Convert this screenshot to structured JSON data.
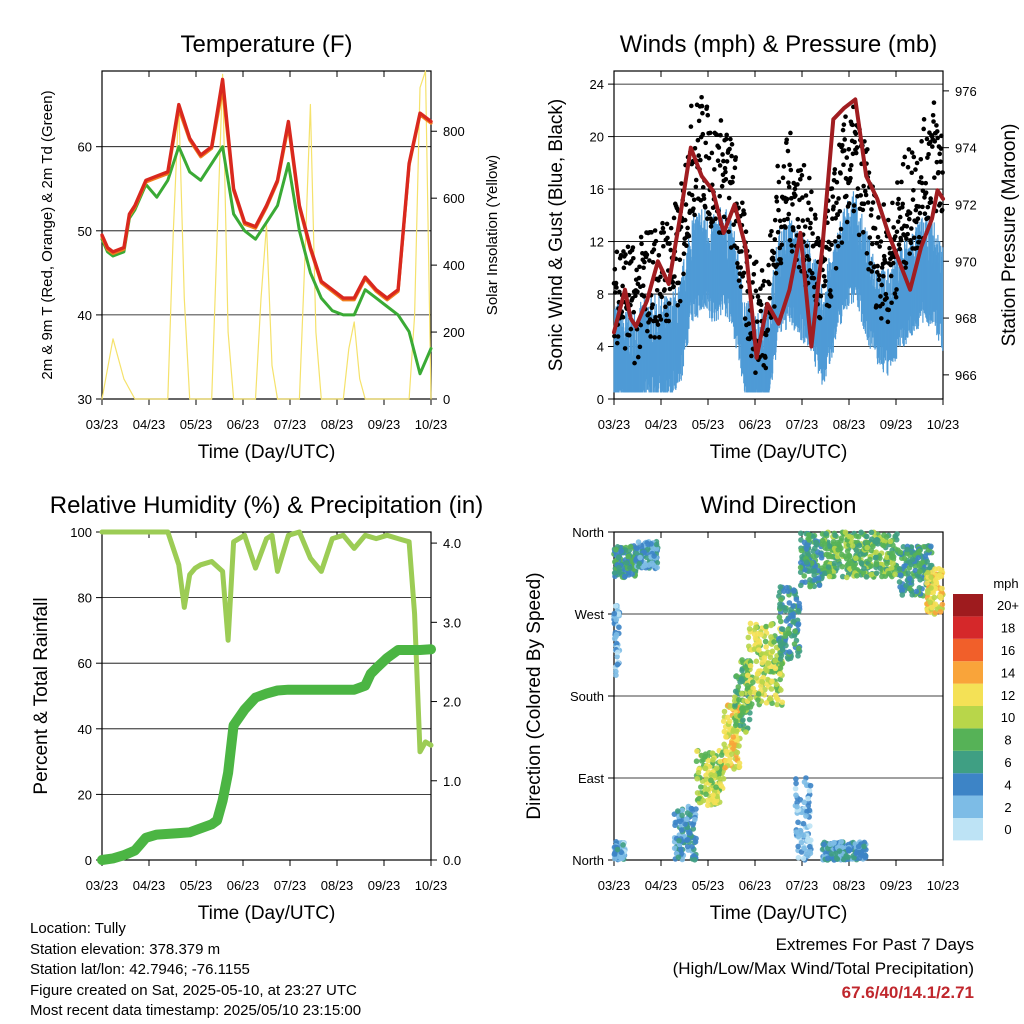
{
  "chart_data": [
    {
      "type": "line",
      "title": "Temperature (F)",
      "xlabel": "Time (Day/UTC)",
      "ylabel": "2m & 9m T (Red, Orange) & 2m Td (Green)",
      "ylabel_right": "Solar Insolation (Yellow)",
      "x_ticks": [
        "03/23",
        "04/23",
        "05/23",
        "06/23",
        "07/23",
        "08/23",
        "09/23",
        "10/23"
      ],
      "ylim": [
        30,
        69
      ],
      "y_ticks": [
        30,
        40,
        50,
        60
      ],
      "ylim_right": [
        0,
        980
      ],
      "y_ticks_right": [
        0,
        200,
        400,
        600,
        800
      ],
      "grid_y": true,
      "series": [
        {
          "name": "2m T",
          "color": "#d9281e",
          "x": [
            0,
            0.5,
            1,
            2,
            2.5,
            3,
            4,
            5,
            6,
            7,
            8,
            9,
            10,
            11,
            12,
            13,
            14,
            15,
            16,
            17,
            18,
            19,
            20,
            21,
            22,
            23,
            24,
            25,
            26,
            27,
            28,
            29,
            30
          ],
          "values": [
            49.5,
            48,
            47.5,
            48,
            52,
            53,
            56,
            56.5,
            57,
            65,
            61,
            59,
            60,
            68,
            55,
            51,
            50.5,
            53,
            56,
            63,
            53,
            48,
            44,
            43,
            42,
            42,
            44.5,
            43,
            42,
            43,
            58,
            64,
            63
          ]
        },
        {
          "name": "9m T",
          "color": "#f07c1d",
          "x": [
            0,
            0.5,
            1,
            2,
            2.5,
            3,
            4,
            5,
            6,
            7,
            8,
            9,
            10,
            11,
            12,
            13,
            14,
            15,
            16,
            17,
            18,
            19,
            20,
            21,
            22,
            23,
            24,
            25,
            26,
            27,
            28,
            29,
            30
          ],
          "values": [
            49.3,
            47.8,
            47.3,
            47.8,
            51.8,
            52.8,
            55.8,
            56.3,
            56.8,
            64.5,
            60.8,
            58.8,
            59.8,
            67,
            54.8,
            50.8,
            50.3,
            52.8,
            55.8,
            62.5,
            52.8,
            47.8,
            43.8,
            42.8,
            41.8,
            41.8,
            44.3,
            42.8,
            41.8,
            42.8,
            57.8,
            63.8,
            62.8
          ]
        },
        {
          "name": "2m Td",
          "color": "#3aaa35",
          "x": [
            0,
            0.5,
            1,
            2,
            2.5,
            3,
            4,
            5,
            6,
            7,
            8,
            9,
            10,
            11,
            12,
            13,
            14,
            15,
            16,
            17,
            18,
            19,
            20,
            21,
            22,
            23,
            24,
            25,
            26,
            27,
            28,
            29,
            30
          ],
          "values": [
            49,
            47.5,
            47,
            47.5,
            51.5,
            52.5,
            55.5,
            54,
            56,
            60,
            57,
            56,
            58,
            60,
            52,
            50,
            49,
            51,
            53,
            58,
            50,
            45,
            42,
            40.5,
            40,
            40,
            43,
            42,
            41,
            40,
            38,
            33,
            36
          ]
        },
        {
          "name": "Solar Insolation",
          "color": "#f5e26b",
          "x": [
            0,
            1,
            2,
            3,
            4,
            5,
            6,
            6.5,
            7,
            7.5,
            8,
            9,
            10,
            10.5,
            11,
            11.5,
            12,
            13,
            14,
            14.5,
            15,
            15.5,
            16,
            17,
            18,
            18.5,
            19,
            19.5,
            20,
            21,
            22,
            22.5,
            23,
            23.5,
            24,
            25,
            26,
            27,
            28,
            28.5,
            29,
            29.5,
            30
          ],
          "values": [
            0,
            180,
            60,
            0,
            0,
            0,
            0,
            500,
            880,
            300,
            0,
            0,
            0,
            480,
            970,
            200,
            0,
            0,
            0,
            300,
            520,
            100,
            0,
            0,
            0,
            420,
            880,
            200,
            0,
            0,
            0,
            150,
            230,
            60,
            0,
            0,
            0,
            0,
            0,
            250,
            930,
            980,
            0
          ]
        }
      ]
    },
    {
      "type": "line",
      "title": "Winds (mph) & Pressure (mb)",
      "xlabel": "Time (Day/UTC)",
      "ylabel": "Sonic Wind & Gust (Blue, Black)",
      "ylabel_right": "Station Pressure (Maroon)",
      "x_ticks": [
        "03/23",
        "04/23",
        "05/23",
        "06/23",
        "07/23",
        "08/23",
        "09/23",
        "10/23"
      ],
      "ylim": [
        0,
        25
      ],
      "y_ticks": [
        0,
        4,
        8,
        12,
        16,
        20,
        24
      ],
      "ylim_right": [
        965.15,
        976.7
      ],
      "y_ticks_right": [
        966,
        968,
        970,
        972,
        974,
        976
      ],
      "grid_y": true,
      "series": [
        {
          "name": "Sonic Wind",
          "color": "#4f9bd6",
          "x": [
            0,
            1,
            2,
            3,
            4,
            5,
            6,
            7,
            8,
            9,
            10,
            11,
            12,
            13,
            14,
            15,
            16,
            17,
            18,
            19,
            20,
            21,
            22,
            23,
            24,
            25,
            26,
            27,
            28,
            29,
            30
          ],
          "values": [
            4,
            3,
            3,
            4,
            4,
            4,
            5,
            10,
            11,
            10,
            11,
            9,
            4,
            3,
            3,
            9,
            10,
            9,
            8,
            5,
            8,
            11,
            12,
            9,
            7,
            6,
            8,
            9,
            10,
            10,
            8
          ]
        },
        {
          "name": "Gust",
          "color": "#000000",
          "x": [
            0,
            1,
            2,
            3,
            4,
            5,
            6,
            7,
            8,
            9,
            10,
            11,
            12,
            13,
            14,
            15,
            16,
            17,
            18,
            19,
            20,
            21,
            22,
            23,
            24,
            25,
            26,
            27,
            28,
            29,
            30
          ],
          "values": [
            9,
            8,
            7,
            9,
            9,
            10,
            11,
            18,
            19,
            17,
            17,
            15,
            9,
            6,
            7,
            14,
            16,
            14,
            12,
            8,
            13,
            17,
            18,
            15,
            11,
            10,
            13,
            15,
            16,
            19,
            17
          ]
        },
        {
          "name": "Station Pressure",
          "color": "#a11d21",
          "x": [
            0,
            1,
            1.5,
            2,
            3,
            4,
            5,
            6,
            7,
            8,
            9,
            10,
            11,
            12,
            13,
            14,
            15,
            16,
            17,
            18,
            19,
            20,
            21,
            22,
            23,
            24,
            25,
            26,
            27,
            28,
            29,
            29.5,
            30
          ],
          "values": [
            967.5,
            969,
            968,
            967.7,
            968.6,
            970,
            969.2,
            971.5,
            974,
            973,
            972.5,
            971,
            972,
            970.5,
            966.6,
            968.5,
            967.8,
            969,
            971,
            967,
            970.5,
            975,
            975.4,
            975.7,
            973,
            972.2,
            971,
            970,
            969,
            970.5,
            971.5,
            972.5,
            972.2
          ]
        }
      ]
    },
    {
      "type": "line",
      "title": "Relative Humidity (%) & Precipitation (in)",
      "xlabel": "Time (Day/UTC)",
      "ylabel": "Percent & Total Rainfall",
      "x_ticks": [
        "03/23",
        "04/23",
        "05/23",
        "06/23",
        "07/23",
        "08/23",
        "09/23",
        "10/23"
      ],
      "ylim": [
        0,
        100
      ],
      "y_ticks": [
        0,
        20,
        40,
        60,
        80,
        100
      ],
      "ylim_right": [
        0,
        4.14
      ],
      "y_ticks_right": [
        0.0,
        1.0,
        2.0,
        3.0,
        4.0
      ],
      "grid_y": true,
      "series": [
        {
          "name": "Relative Humidity",
          "color": "#9ccc55",
          "x": [
            0,
            1,
            2,
            3,
            4,
            4.5,
            5,
            6,
            7,
            7.5,
            8,
            8.5,
            9,
            10,
            11,
            11.5,
            12,
            13,
            14,
            15,
            15.5,
            16,
            17,
            18,
            19,
            20,
            21,
            22,
            23,
            24,
            25,
            26,
            27,
            28,
            28.5,
            29,
            29.5,
            30
          ],
          "values": [
            100,
            100,
            100,
            100,
            100,
            100,
            100,
            100,
            90,
            77,
            87,
            89,
            90,
            91,
            88,
            67,
            97,
            99,
            89,
            98,
            99,
            88,
            99,
            100,
            92,
            88,
            98,
            99,
            95,
            99,
            98,
            99,
            98,
            97,
            75,
            33,
            36,
            35
          ]
        },
        {
          "name": "Total Rainfall",
          "color": "#4bb543",
          "x": [
            0,
            1,
            2,
            3,
            3.5,
            4,
            5,
            6,
            7,
            8,
            9,
            10,
            10.5,
            11,
            11.5,
            12,
            13,
            14,
            15,
            16,
            17,
            18,
            19,
            20,
            21,
            22,
            23,
            24,
            24.5,
            25,
            26,
            27,
            28,
            29,
            30
          ],
          "values": [
            0,
            0.02,
            0.06,
            0.12,
            0.2,
            0.28,
            0.32,
            0.33,
            0.34,
            0.35,
            0.4,
            0.45,
            0.5,
            0.75,
            1.1,
            1.7,
            1.9,
            2.05,
            2.1,
            2.14,
            2.15,
            2.15,
            2.15,
            2.15,
            2.15,
            2.15,
            2.15,
            2.2,
            2.35,
            2.42,
            2.55,
            2.65,
            2.65,
            2.65,
            2.66
          ]
        }
      ]
    },
    {
      "type": "scatter",
      "title": "Wind Direction",
      "xlabel": "Time (Day/UTC)",
      "ylabel": "Direction (Colored By Speed)",
      "x_ticks": [
        "03/23",
        "04/23",
        "05/23",
        "06/23",
        "07/23",
        "08/23",
        "09/23",
        "10/23"
      ],
      "y_ticks": [
        "North",
        "East",
        "South",
        "West",
        "North"
      ],
      "ylim": [
        0,
        360
      ],
      "grid_y": true,
      "colorbar": {
        "title": "mph",
        "labels": [
          "0",
          "2",
          "4",
          "6",
          "8",
          "10",
          "12",
          "14",
          "16",
          "18",
          "20+"
        ],
        "colors": [
          "#bde3f5",
          "#7dbce6",
          "#3d84c6",
          "#3f9f83",
          "#56b257",
          "#b8d64a",
          "#f4e156",
          "#f9a43a",
          "#f15f2a",
          "#d5282a",
          "#9e1b1e"
        ]
      },
      "clusters": [
        {
          "x": [
            0,
            2
          ],
          "dir": [
            310,
            345
          ],
          "speed": 6
        },
        {
          "x": [
            2,
            4
          ],
          "dir": [
            320,
            350
          ],
          "speed": 4
        },
        {
          "x": [
            0,
            0.5
          ],
          "dir": [
            200,
            280
          ],
          "speed": 2
        },
        {
          "x": [
            0,
            1
          ],
          "dir": [
            0,
            20
          ],
          "speed": 3
        },
        {
          "x": [
            5.5,
            7.5
          ],
          "dir": [
            0,
            60
          ],
          "speed": 4
        },
        {
          "x": [
            7.5,
            10
          ],
          "dir": [
            60,
            120
          ],
          "speed": 10
        },
        {
          "x": [
            10,
            11.5
          ],
          "dir": [
            100,
            170
          ],
          "speed": 12
        },
        {
          "x": [
            11,
            12.5
          ],
          "dir": [
            140,
            220
          ],
          "speed": 8
        },
        {
          "x": [
            12,
            15.5
          ],
          "dir": [
            170,
            260
          ],
          "speed": 10
        },
        {
          "x": [
            15,
            17
          ],
          "dir": [
            220,
            300
          ],
          "speed": 6
        },
        {
          "x": [
            16.5,
            18
          ],
          "dir": [
            0,
            90
          ],
          "speed": 2
        },
        {
          "x": [
            17,
            19
          ],
          "dir": [
            300,
            360
          ],
          "speed": 6
        },
        {
          "x": [
            19,
            26
          ],
          "dir": [
            310,
            360
          ],
          "speed": 8
        },
        {
          "x": [
            26,
            29
          ],
          "dir": [
            290,
            345
          ],
          "speed": 6
        },
        {
          "x": [
            28.5,
            30
          ],
          "dir": [
            270,
            320
          ],
          "speed": 12
        },
        {
          "x": [
            19,
            23
          ],
          "dir": [
            0,
            20
          ],
          "speed": 4
        }
      ]
    }
  ],
  "footer": {
    "location": "Location: Tully",
    "elevation": "Station elevation: 378.379 m",
    "latlon": "Station lat/lon: 42.7946; -76.1155",
    "created": "Figure created on Sat, 2025-05-10, at 23:27 UTC",
    "recent": "Most recent data timestamp: 2025/05/10 23:15:00"
  },
  "extremes": {
    "heading": "Extremes For Past 7 Days",
    "subheading": "(High/Low/Max Wind/Total Precipitation)",
    "values": "67.6/40/14.1/2.71"
  }
}
